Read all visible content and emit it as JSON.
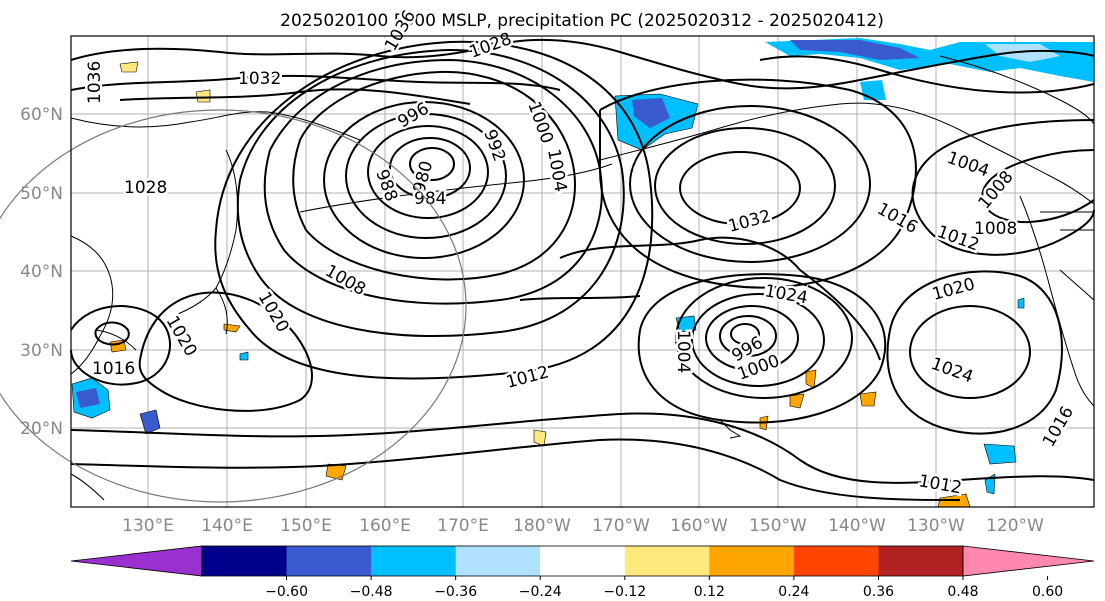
{
  "title": "2025020100 F000 MSLP, precipitation PC (2025020312 - 2025020412)",
  "lat_labels": [
    "60°N",
    "50°N",
    "40°N",
    "30°N",
    "20°N"
  ],
  "lon_labels": [
    "130°E",
    "140°E",
    "150°E",
    "160°E",
    "170°E",
    "180°W",
    "170°W",
    "160°W",
    "150°W",
    "140°W",
    "130°W",
    "120°W"
  ],
  "colorbar": {
    "ticks": [
      "−0.60",
      "−0.48",
      "−0.36",
      "−0.24",
      "−0.12",
      "0.12",
      "0.24",
      "0.36",
      "0.48",
      "0.60"
    ],
    "colors": [
      "#9b30d0",
      "#00008b",
      "#3a5bcf",
      "#00bfff",
      "#b0e2ff",
      "#ffffff",
      "#ffe97f",
      "#ffa500",
      "#ff4500",
      "#b22222",
      "#ff88b0"
    ]
  },
  "isobar_labels": [
    {
      "text": "1028"
    },
    {
      "text": "1036"
    },
    {
      "text": "1032"
    },
    {
      "text": "1036"
    },
    {
      "text": "1020"
    },
    {
      "text": "1028"
    },
    {
      "text": "1000"
    },
    {
      "text": "1004"
    },
    {
      "text": "996"
    },
    {
      "text": "992"
    },
    {
      "text": "988"
    },
    {
      "text": "980"
    },
    {
      "text": "984"
    },
    {
      "text": "1032"
    },
    {
      "text": "1016"
    },
    {
      "text": "1012"
    },
    {
      "text": "1008"
    },
    {
      "text": "1004"
    },
    {
      "text": "1008"
    },
    {
      "text": "1020"
    },
    {
      "text": "1008"
    },
    {
      "text": "1020"
    },
    {
      "text": "1024"
    },
    {
      "text": "1016"
    },
    {
      "text": "1012"
    },
    {
      "text": "1004"
    },
    {
      "text": "996"
    },
    {
      "text": "1000"
    },
    {
      "text": "1024"
    },
    {
      "text": "1016"
    },
    {
      "text": "1012"
    }
  ]
}
